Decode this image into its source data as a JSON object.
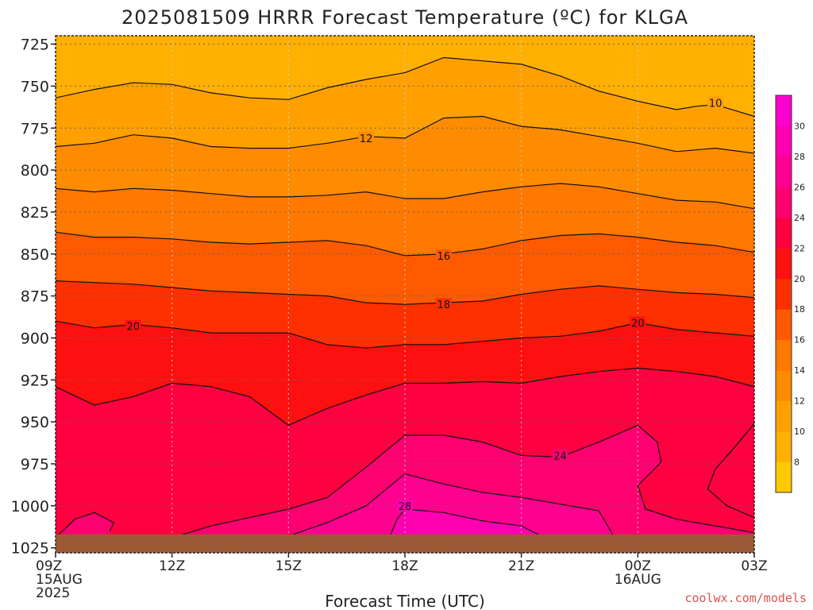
{
  "title": "2025081509 HRRR Forecast Temperature (ºC) for KLGA",
  "credit": "coolwx.com/models",
  "colors": {
    "ground": "#9c5a36",
    "contour": "#111111",
    "grid": "#666666"
  },
  "chart_data": {
    "type": "heatmap",
    "title": "2025081509 HRRR Forecast Temperature (ºC) for KLGA",
    "xlabel": "Forecast Time (UTC)",
    "ylabel": "",
    "xlim_hours": [
      0,
      18
    ],
    "ylim_hpa": [
      1028,
      720
    ],
    "y_ticks": [
      725,
      750,
      775,
      800,
      825,
      850,
      875,
      900,
      925,
      950,
      975,
      1000,
      1025
    ],
    "x_ticks": [
      {
        "hour": 0,
        "lines": [
          "09Z",
          "15AUG",
          "2025"
        ]
      },
      {
        "hour": 3,
        "lines": [
          "12Z"
        ]
      },
      {
        "hour": 6,
        "lines": [
          "15Z"
        ]
      },
      {
        "hour": 9,
        "lines": [
          "18Z"
        ]
      },
      {
        "hour": 12,
        "lines": [
          "21Z"
        ]
      },
      {
        "hour": 15,
        "lines": [
          "00Z",
          "16AUG"
        ]
      },
      {
        "hour": 18,
        "lines": [
          "03Z"
        ]
      }
    ],
    "surface_pressure_hpa": 1017,
    "colorbar": {
      "levels": [
        6,
        8,
        10,
        12,
        14,
        16,
        18,
        20,
        22,
        24,
        26,
        28,
        30,
        32
      ],
      "colors": [
        "#ffc800",
        "#ffb000",
        "#ffa000",
        "#ff8c00",
        "#ff7800",
        "#ff5a00",
        "#ff3000",
        "#ff1010",
        "#ff0040",
        "#ff0070",
        "#ff0090",
        "#ff00b0",
        "#ff00d0",
        "#ff00f0"
      ],
      "tick_labels": [
        "8",
        "10",
        "12",
        "14",
        "16",
        "18",
        "20",
        "22",
        "24",
        "26",
        "28",
        "30"
      ]
    },
    "isotherms": [
      {
        "value": 10,
        "points": [
          [
            0,
            757
          ],
          [
            1,
            752
          ],
          [
            2,
            748
          ],
          [
            3,
            749
          ],
          [
            4,
            754
          ],
          [
            5,
            757
          ],
          [
            6,
            758
          ],
          [
            7,
            751
          ],
          [
            8,
            746
          ],
          [
            9,
            742
          ],
          [
            10,
            733
          ],
          [
            11,
            735
          ],
          [
            12,
            737
          ],
          [
            13,
            744
          ],
          [
            14,
            753
          ],
          [
            15,
            759
          ],
          [
            16,
            764
          ],
          [
            16.5,
            762
          ],
          [
            17,
            761
          ],
          [
            18,
            768
          ]
        ]
      },
      {
        "value": 12,
        "points": [
          [
            0,
            786
          ],
          [
            1,
            784
          ],
          [
            2,
            779
          ],
          [
            3,
            781
          ],
          [
            4,
            786
          ],
          [
            5,
            787
          ],
          [
            6,
            787
          ],
          [
            7,
            784
          ],
          [
            8,
            780
          ],
          [
            9,
            781
          ],
          [
            10,
            769
          ],
          [
            11,
            768
          ],
          [
            12,
            774
          ],
          [
            13,
            776
          ],
          [
            14,
            780
          ],
          [
            15,
            784
          ],
          [
            16,
            789
          ],
          [
            17,
            787
          ],
          [
            18,
            790
          ]
        ]
      },
      {
        "value": 14,
        "points": [
          [
            0,
            811
          ],
          [
            1,
            813
          ],
          [
            2,
            811
          ],
          [
            3,
            812
          ],
          [
            4,
            814
          ],
          [
            5,
            816
          ],
          [
            6,
            816
          ],
          [
            7,
            815
          ],
          [
            8,
            813
          ],
          [
            9,
            817
          ],
          [
            10,
            817
          ],
          [
            11,
            813
          ],
          [
            12,
            810
          ],
          [
            13,
            808
          ],
          [
            14,
            810
          ],
          [
            15,
            814
          ],
          [
            16,
            818
          ],
          [
            17,
            819
          ],
          [
            18,
            823
          ]
        ]
      },
      {
        "value": 16,
        "points": [
          [
            0,
            837
          ],
          [
            1,
            840
          ],
          [
            2,
            840
          ],
          [
            3,
            841
          ],
          [
            4,
            843
          ],
          [
            5,
            844
          ],
          [
            6,
            843
          ],
          [
            7,
            842
          ],
          [
            8,
            845
          ],
          [
            9,
            851
          ],
          [
            10,
            850
          ],
          [
            11,
            847
          ],
          [
            12,
            842
          ],
          [
            13,
            839
          ],
          [
            14,
            838
          ],
          [
            15,
            840
          ],
          [
            16,
            843
          ],
          [
            17,
            845
          ],
          [
            18,
            849
          ]
        ]
      },
      {
        "value": 18,
        "points": [
          [
            0,
            866
          ],
          [
            1,
            867
          ],
          [
            2,
            868
          ],
          [
            3,
            870
          ],
          [
            4,
            872
          ],
          [
            5,
            873
          ],
          [
            6,
            874
          ],
          [
            7,
            875
          ],
          [
            8,
            879
          ],
          [
            9,
            880
          ],
          [
            10,
            879
          ],
          [
            11,
            878
          ],
          [
            12,
            874
          ],
          [
            13,
            871
          ],
          [
            14,
            869
          ],
          [
            15,
            871
          ],
          [
            16,
            873
          ],
          [
            17,
            874
          ],
          [
            18,
            876
          ]
        ]
      },
      {
        "value": 20,
        "points": [
          [
            0,
            890
          ],
          [
            1,
            894
          ],
          [
            2,
            892
          ],
          [
            3,
            894
          ],
          [
            4,
            897
          ],
          [
            5,
            897
          ],
          [
            6,
            897
          ],
          [
            7,
            904
          ],
          [
            8,
            906
          ],
          [
            9,
            904
          ],
          [
            10,
            904
          ],
          [
            11,
            902
          ],
          [
            12,
            900
          ],
          [
            13,
            899
          ],
          [
            14,
            896
          ],
          [
            15,
            891
          ],
          [
            16,
            895
          ],
          [
            17,
            897
          ],
          [
            18,
            899
          ]
        ]
      },
      {
        "value": 22,
        "points": [
          [
            0,
            929
          ],
          [
            1,
            940
          ],
          [
            2,
            935
          ],
          [
            3,
            927
          ],
          [
            4,
            929
          ],
          [
            5,
            935
          ],
          [
            6,
            952
          ],
          [
            7,
            942
          ],
          [
            8,
            934
          ],
          [
            9,
            927
          ],
          [
            10,
            927
          ],
          [
            11,
            926
          ],
          [
            12,
            927
          ],
          [
            13,
            923
          ],
          [
            14,
            920
          ],
          [
            15,
            918
          ],
          [
            16,
            920
          ],
          [
            17,
            923
          ],
          [
            18,
            929
          ]
        ]
      },
      {
        "value": 24,
        "points": [
          [
            0,
            1019
          ],
          [
            0.5,
            1008
          ],
          [
            1,
            1004
          ],
          [
            1.5,
            1010
          ],
          [
            1.4,
            1015
          ]
        ]
      },
      {
        "value": 24,
        "points": [
          [
            3,
            1019
          ],
          [
            4,
            1012
          ],
          [
            5,
            1007
          ],
          [
            6,
            1002
          ],
          [
            7,
            995
          ],
          [
            8,
            977
          ],
          [
            9,
            958
          ],
          [
            10,
            958
          ],
          [
            11,
            962
          ],
          [
            12,
            970
          ],
          [
            13,
            971
          ],
          [
            14,
            962
          ],
          [
            15,
            952
          ],
          [
            15.5,
            962
          ],
          [
            15.6,
            974
          ],
          [
            15,
            988
          ],
          [
            15.2,
            1002
          ],
          [
            16,
            1008
          ],
          [
            17,
            1012
          ],
          [
            18,
            1016
          ]
        ]
      },
      {
        "value": 26,
        "points": [
          [
            6,
            1018
          ],
          [
            7,
            1010
          ],
          [
            8,
            1000
          ],
          [
            9,
            981
          ],
          [
            10,
            987
          ],
          [
            11,
            992
          ],
          [
            12,
            995
          ],
          [
            13,
            999
          ],
          [
            14,
            1003
          ],
          [
            14.2,
            1011
          ],
          [
            14.4,
            1019
          ]
        ]
      },
      {
        "value": 28,
        "points": [
          [
            8.6,
            1019
          ],
          [
            8.8,
            1008
          ],
          [
            9,
            1002
          ],
          [
            10,
            1004
          ],
          [
            11,
            1009
          ],
          [
            12,
            1012
          ],
          [
            12.6,
            1019
          ]
        ]
      }
    ],
    "contour_labels": [
      {
        "text": "10",
        "hour": 17.0,
        "p": 760
      },
      {
        "text": "12",
        "hour": 8.0,
        "p": 781
      },
      {
        "text": "16",
        "hour": 10.0,
        "p": 851
      },
      {
        "text": "18",
        "hour": 10.0,
        "p": 880
      },
      {
        "text": "20",
        "hour": 2.0,
        "p": 893
      },
      {
        "text": "20",
        "hour": 15.0,
        "p": 891
      },
      {
        "text": "24",
        "hour": 13.0,
        "p": 970
      },
      {
        "text": "28",
        "hour": 9.0,
        "p": 1000
      }
    ],
    "warm_pocket": {
      "value": 22,
      "points": [
        [
          18,
          951
        ],
        [
          17.5,
          965
        ],
        [
          17,
          978
        ],
        [
          16.8,
          990
        ],
        [
          17.3,
          1000
        ],
        [
          18,
          1007
        ]
      ]
    }
  }
}
